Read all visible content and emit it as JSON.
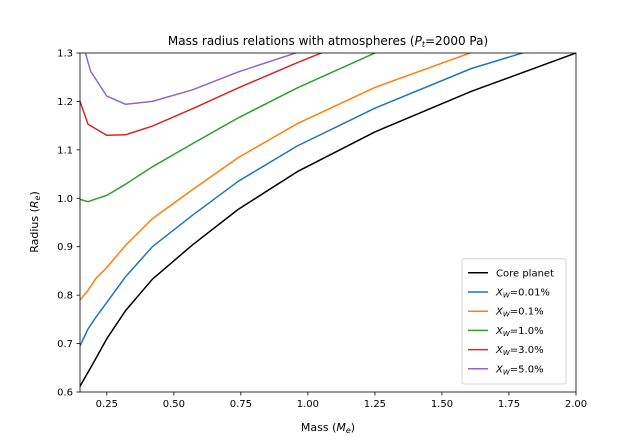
{
  "chart_data": {
    "type": "line",
    "title_main": "Mass radius relations with atmospheres (",
    "title_sym": "P",
    "title_sub": "t",
    "title_tail": "=2000 Pa)",
    "xlabel_main": "Mass (",
    "xlabel_sym": "M",
    "xlabel_sub": "e",
    "xlabel_tail": ")",
    "ylabel_main": "Radius (",
    "ylabel_sym": "R",
    "ylabel_sub": "e",
    "ylabel_tail": ")",
    "xlim": [
      0.15,
      2.0
    ],
    "ylim": [
      0.6,
      1.3
    ],
    "xticks": [
      0.25,
      0.5,
      0.75,
      1.0,
      1.25,
      1.5,
      1.75,
      2.0
    ],
    "xtick_labels": [
      "0.25",
      "0.50",
      "0.75",
      "1.00",
      "1.25",
      "1.50",
      "1.75",
      "2.00"
    ],
    "yticks": [
      0.6,
      0.7,
      0.8,
      0.9,
      1.0,
      1.1,
      1.2,
      1.3
    ],
    "ytick_labels": [
      "0.6",
      "0.7",
      "0.8",
      "0.9",
      "1.0",
      "1.1",
      "1.2",
      "1.3"
    ],
    "grid": false,
    "legend_position": "lower-right",
    "series": [
      {
        "name": "Core planet",
        "label_main": "Core planet",
        "label_tail": "",
        "color": "#000000",
        "x": [
          0.15,
          0.2,
          0.25,
          0.32,
          0.42,
          0.57,
          0.74,
          0.96,
          1.25,
          1.61,
          2.0
        ],
        "y": [
          0.612,
          0.66,
          0.71,
          0.768,
          0.833,
          0.904,
          0.977,
          1.055,
          1.137,
          1.221,
          1.3
        ]
      },
      {
        "name": "XW=0.01%",
        "label_main": "X",
        "label_sub": "W",
        "label_tail": "=0.01%",
        "color": "#1f77b4",
        "x": [
          0.15,
          0.18,
          0.21,
          0.25,
          0.32,
          0.42,
          0.57,
          0.74,
          0.96,
          1.25,
          1.61,
          1.8
        ],
        "y": [
          0.695,
          0.73,
          0.755,
          0.785,
          0.838,
          0.9,
          0.965,
          1.035,
          1.108,
          1.186,
          1.268,
          1.3
        ]
      },
      {
        "name": "XW=0.1%",
        "label_main": "X",
        "label_sub": "W",
        "label_tail": "=0.1%",
        "color": "#ff7f0e",
        "x": [
          0.15,
          0.18,
          0.21,
          0.25,
          0.32,
          0.42,
          0.57,
          0.74,
          0.96,
          1.25,
          1.61
        ],
        "y": [
          0.79,
          0.81,
          0.835,
          0.857,
          0.903,
          0.958,
          1.018,
          1.084,
          1.154,
          1.229,
          1.301
        ]
      },
      {
        "name": "XW=1.0%",
        "label_main": "X",
        "label_sub": "W",
        "label_tail": "=1.0%",
        "color": "#2ca02c",
        "x": [
          0.15,
          0.18,
          0.21,
          0.25,
          0.32,
          0.42,
          0.57,
          0.74,
          0.96,
          1.25
        ],
        "y": [
          0.998,
          0.993,
          0.999,
          1.006,
          1.029,
          1.065,
          1.113,
          1.166,
          1.228,
          1.3
        ]
      },
      {
        "name": "XW=3.0%",
        "label_main": "X",
        "label_sub": "W",
        "label_tail": "=3.0%",
        "color": "#d62728",
        "x": [
          0.15,
          0.18,
          0.21,
          0.25,
          0.32,
          0.42,
          0.57,
          0.74,
          0.96,
          1.05
        ],
        "y": [
          1.2,
          1.153,
          1.143,
          1.13,
          1.131,
          1.149,
          1.185,
          1.228,
          1.28,
          1.3
        ]
      },
      {
        "name": "XW=5.0%",
        "label_main": "X",
        "label_sub": "W",
        "label_tail": "=5.0%",
        "color": "#9467bd",
        "x": [
          0.17,
          0.19,
          0.25,
          0.32,
          0.42,
          0.57,
          0.74,
          0.96
        ],
        "y": [
          1.3,
          1.262,
          1.211,
          1.194,
          1.2,
          1.224,
          1.261,
          1.301
        ]
      }
    ]
  }
}
